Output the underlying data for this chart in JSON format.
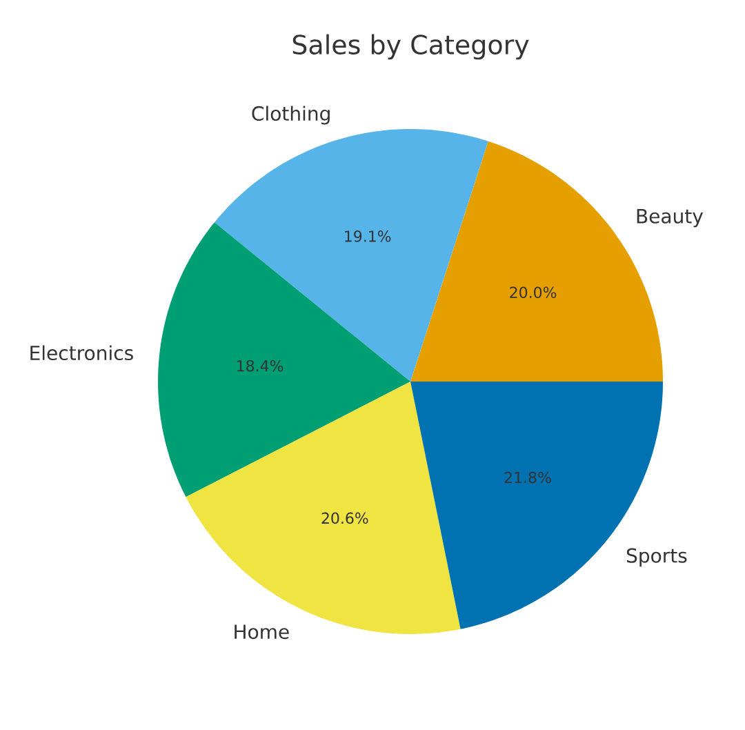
{
  "chart_data": {
    "type": "pie",
    "title": "Sales by Category",
    "categories": [
      "Beauty",
      "Clothing",
      "Electronics",
      "Home",
      "Sports"
    ],
    "values": [
      20.0,
      19.1,
      18.4,
      20.6,
      21.8
    ],
    "colors": [
      "#e69f00",
      "#56b4e9",
      "#009e73",
      "#f0e442",
      "#0072b2"
    ],
    "value_labels": [
      "20.0%",
      "19.1%",
      "18.4%",
      "20.6%",
      "21.8%"
    ]
  }
}
